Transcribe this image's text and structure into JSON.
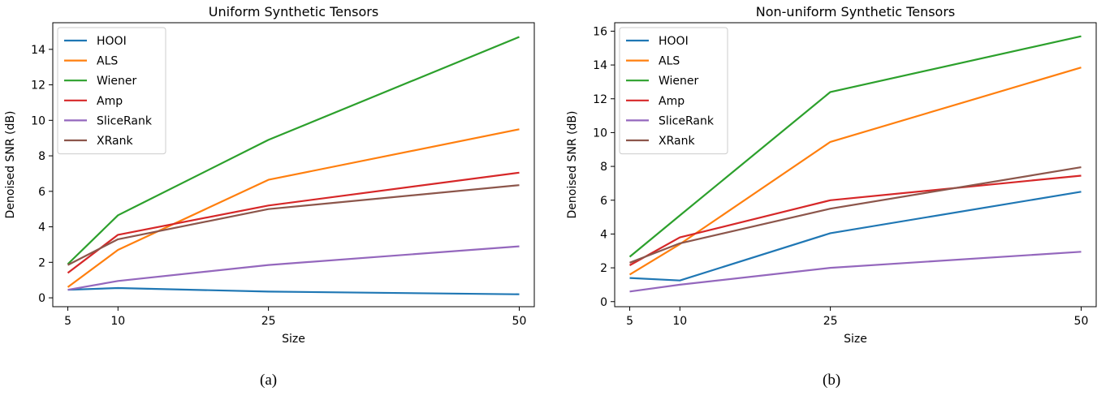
{
  "colors": {
    "HOOI": "#1f77b4",
    "ALS": "#ff7f0e",
    "Wiener": "#2ca02c",
    "Amp": "#d62728",
    "SliceRank": "#9467bd",
    "XRank": "#8c564b"
  },
  "chart_data": [
    {
      "type": "line",
      "title": "Uniform Synthetic Tensors",
      "xlabel": "Size",
      "ylabel": "Denoised SNR (dB)",
      "caption": "(a)",
      "x": [
        5,
        10,
        25,
        50
      ],
      "xticks": [
        "5",
        "10",
        "25",
        "50"
      ],
      "yticks": [
        "0",
        "2",
        "4",
        "6",
        "8",
        "10",
        "12",
        "14"
      ],
      "xlim": [
        3.5,
        51.5
      ],
      "ylim": [
        -0.5,
        15.5
      ],
      "legend_position": "top-left",
      "grid": false,
      "series": [
        {
          "name": "HOOI",
          "values": [
            0.45,
            0.55,
            0.35,
            0.2
          ]
        },
        {
          "name": "ALS",
          "values": [
            0.6,
            2.7,
            6.65,
            9.5
          ]
        },
        {
          "name": "Wiener",
          "values": [
            1.9,
            4.65,
            8.9,
            14.7
          ]
        },
        {
          "name": "Amp",
          "values": [
            1.4,
            3.55,
            5.2,
            7.05
          ]
        },
        {
          "name": "SliceRank",
          "values": [
            0.45,
            0.95,
            1.85,
            2.9
          ]
        },
        {
          "name": "XRank",
          "values": [
            1.85,
            3.3,
            5.0,
            6.35
          ]
        }
      ]
    },
    {
      "type": "line",
      "title": "Non-uniform Synthetic Tensors",
      "xlabel": "Size",
      "ylabel": "Denoised SNR (dB)",
      "caption": "(b)",
      "x": [
        5,
        10,
        25,
        50
      ],
      "xticks": [
        "5",
        "10",
        "25",
        "50"
      ],
      "yticks": [
        "0",
        "2",
        "4",
        "6",
        "8",
        "10",
        "12",
        "14",
        "16"
      ],
      "xlim": [
        3.5,
        51.5
      ],
      "ylim": [
        -0.3,
        16.5
      ],
      "legend_position": "top-left",
      "grid": false,
      "series": [
        {
          "name": "HOOI",
          "values": [
            1.4,
            1.25,
            4.05,
            6.5
          ]
        },
        {
          "name": "ALS",
          "values": [
            1.6,
            3.4,
            9.45,
            13.85
          ]
        },
        {
          "name": "Wiener",
          "values": [
            2.65,
            5.1,
            12.4,
            15.7
          ]
        },
        {
          "name": "Amp",
          "values": [
            2.15,
            3.8,
            6.0,
            7.45
          ]
        },
        {
          "name": "SliceRank",
          "values": [
            0.6,
            1.0,
            2.0,
            2.95
          ]
        },
        {
          "name": "XRank",
          "values": [
            2.3,
            3.45,
            5.5,
            7.95
          ]
        }
      ]
    }
  ]
}
